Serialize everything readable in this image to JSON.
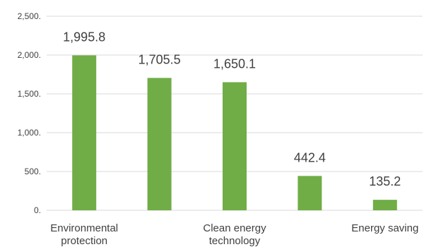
{
  "chart_data": {
    "type": "bar",
    "categories": [
      [
        "Environmental",
        "protection"
      ],
      [],
      [
        "Clean energy",
        "technology"
      ],
      [],
      [
        "Energy saving"
      ]
    ],
    "values": [
      1995.8,
      1705.5,
      1650.1,
      442.4,
      135.2
    ],
    "data_labels": [
      "1,995.8",
      "1,705.5",
      "1,650.1",
      "442.4",
      "135.2"
    ],
    "y_ticks": [
      {
        "value": 0,
        "label": "0."
      },
      {
        "value": 500,
        "label": "500."
      },
      {
        "value": 1000,
        "label": "1,000."
      },
      {
        "value": 1500,
        "label": "1,500."
      },
      {
        "value": 2000,
        "label": "2,000."
      },
      {
        "value": 2500,
        "label": "2,500."
      }
    ],
    "ylim": [
      0,
      2500
    ],
    "grid": true,
    "legend": "none",
    "title": "",
    "xlabel": "",
    "ylabel": "",
    "bar_color": "#70ad47",
    "grid_color": "#d9d9d9",
    "text_color": "#404040"
  }
}
